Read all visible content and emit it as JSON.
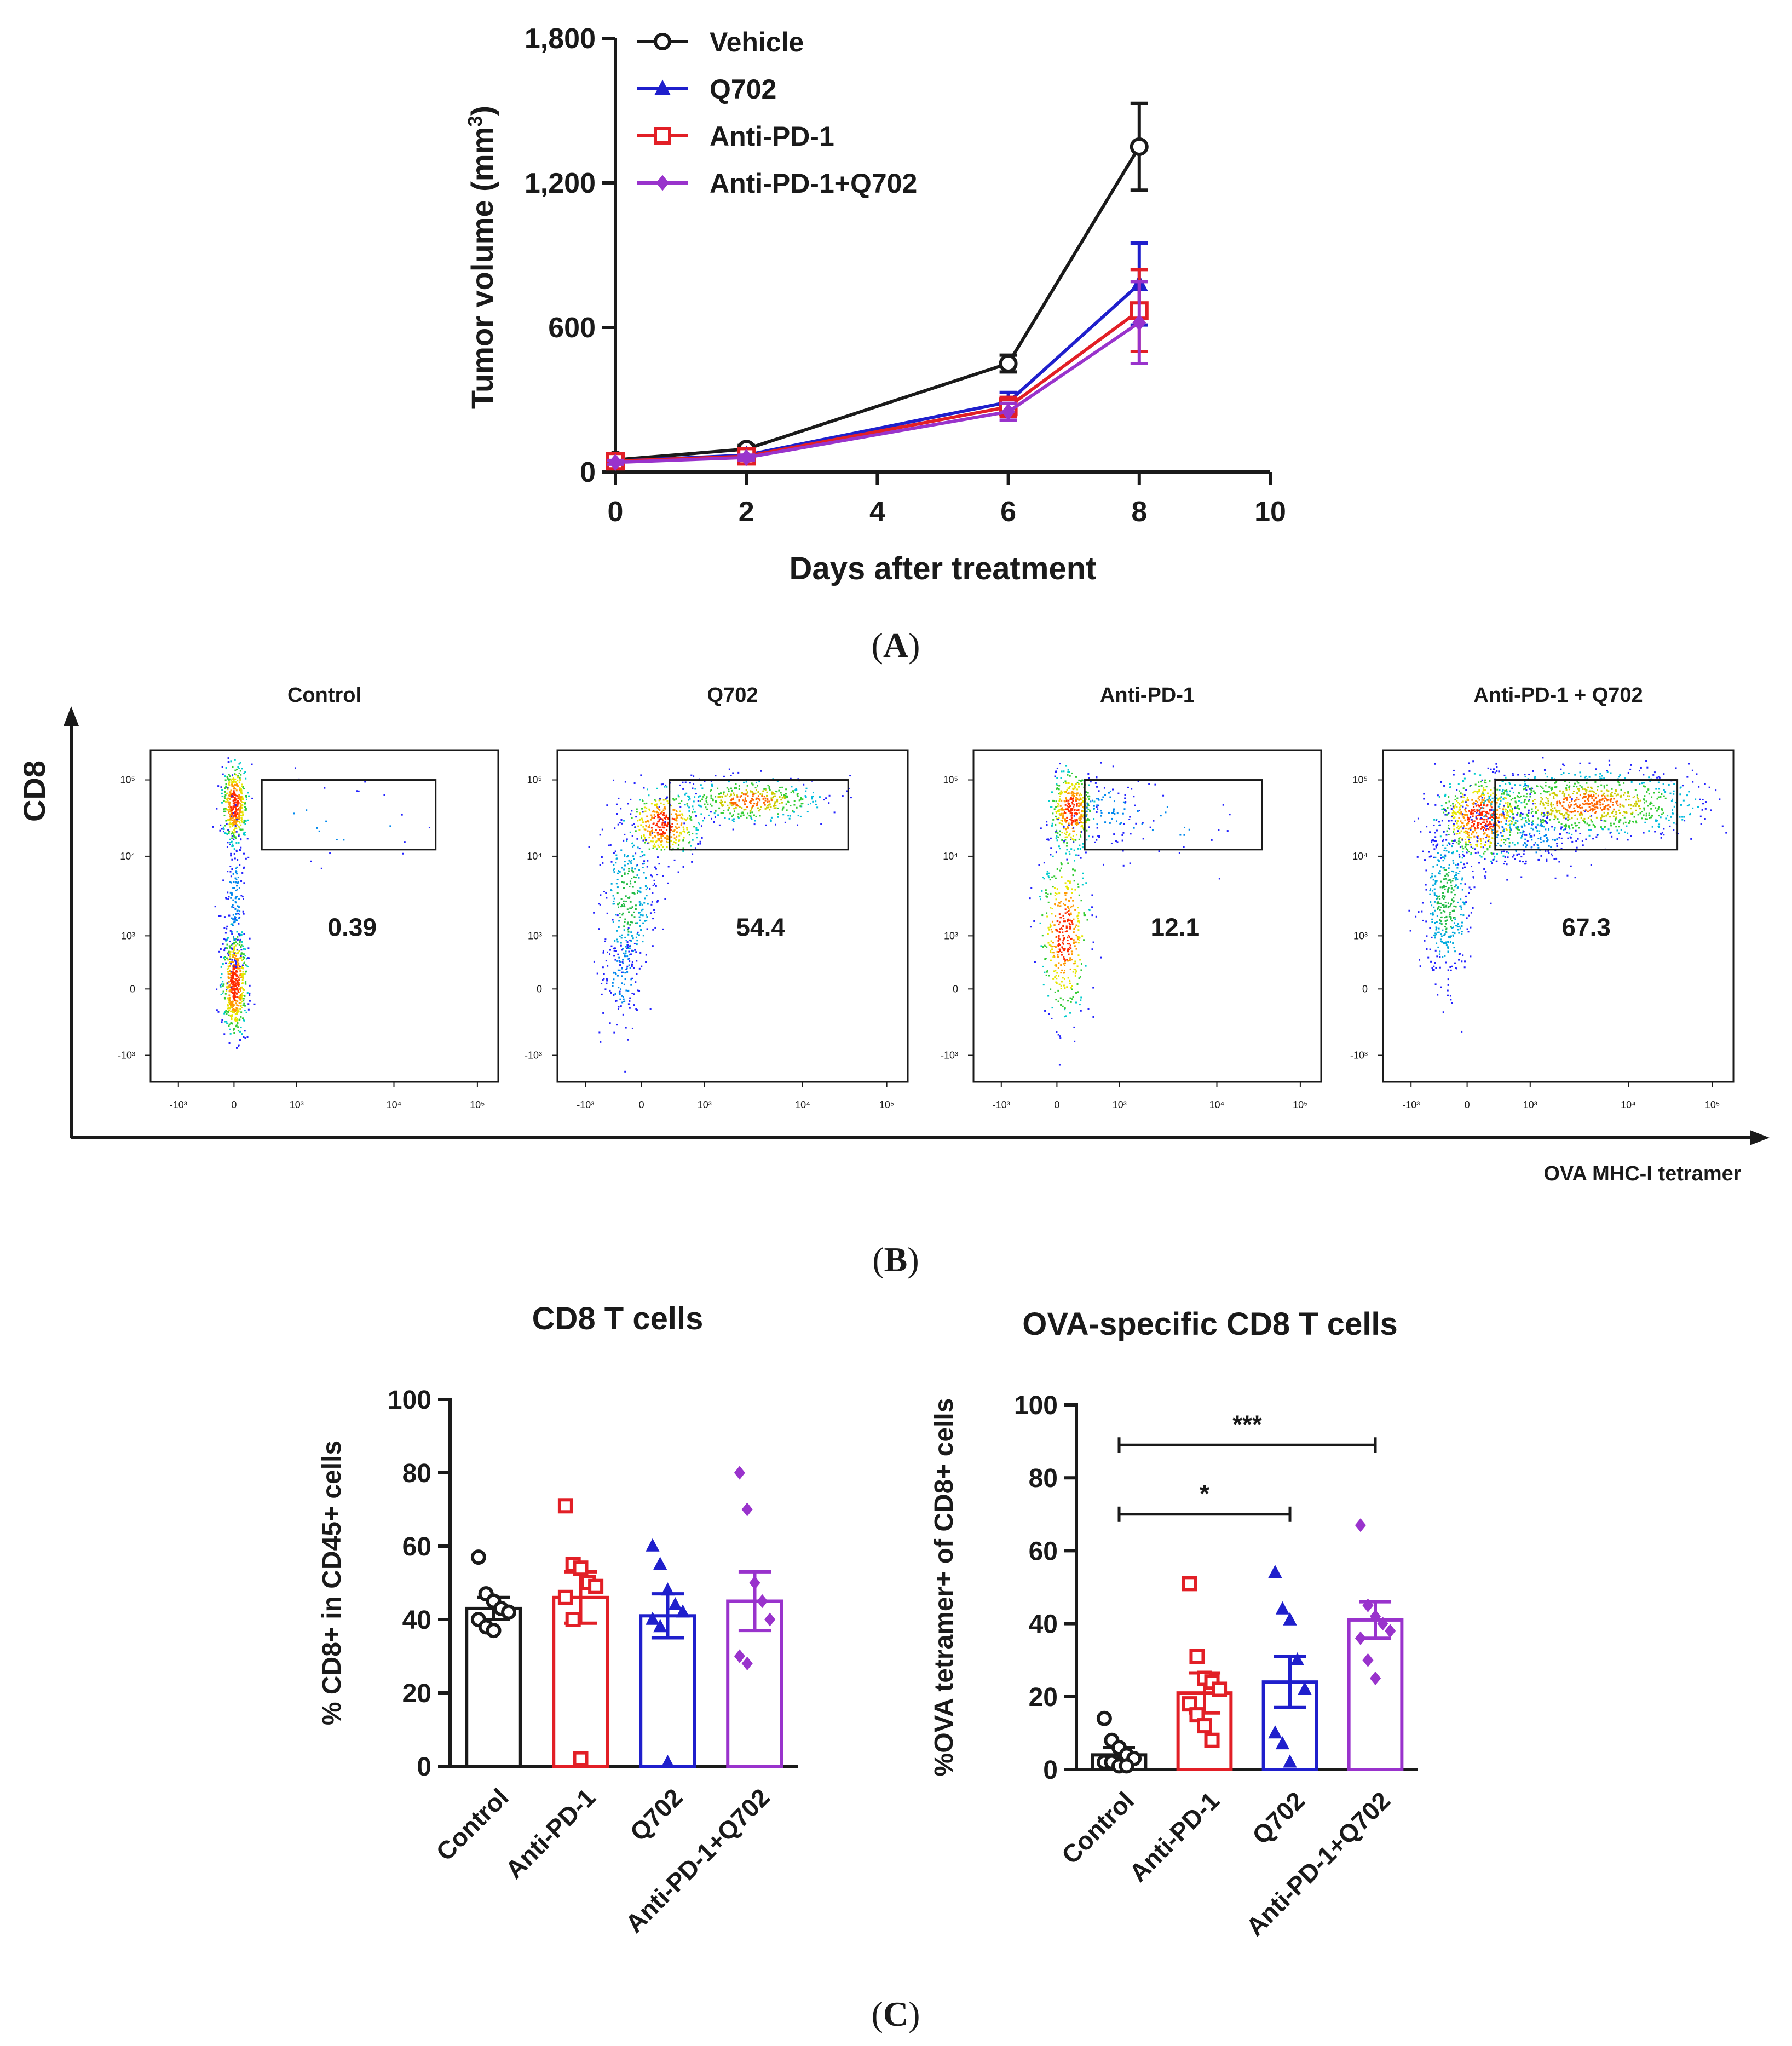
{
  "colors": {
    "black": "#1a1a1a",
    "blue": "#1f1fcc",
    "red": "#e21f26",
    "purple": "#9933cc"
  },
  "panel_labels": {
    "a": "A",
    "b": "B",
    "c": "C"
  },
  "chart_data": [
    {
      "id": "A",
      "type": "line",
      "xlabel": "Days after treatment",
      "ylabel_main": "Tumor volume (mm",
      "ylabel_sup": "3",
      "ylabel_close": ")",
      "xlim": [
        0,
        10
      ],
      "ylim": [
        0,
        1800
      ],
      "xticks": [
        "0",
        "2",
        "4",
        "6",
        "8",
        "10"
      ],
      "yticks": [
        "0",
        "600",
        "1,200",
        "1,800"
      ],
      "x": [
        0,
        2,
        6,
        8
      ],
      "series": [
        {
          "name": "Vehicle",
          "marker": "circle",
          "color": "#1a1a1a",
          "values": [
            50,
            95,
            450,
            1350
          ],
          "err": [
            10,
            15,
            35,
            180
          ]
        },
        {
          "name": "Q702",
          "marker": "triangle",
          "color": "#1f1fcc",
          "values": [
            45,
            70,
            290,
            780
          ],
          "err": [
            8,
            12,
            40,
            170
          ]
        },
        {
          "name": "Anti-PD-1",
          "marker": "square",
          "color": "#e21f26",
          "values": [
            45,
            65,
            270,
            670
          ],
          "err": [
            8,
            10,
            40,
            170
          ]
        },
        {
          "name": "Anti-PD-1+Q702",
          "marker": "diamond",
          "color": "#9933cc",
          "values": [
            40,
            60,
            250,
            620
          ],
          "err": [
            8,
            10,
            35,
            170
          ]
        }
      ]
    },
    {
      "id": "B",
      "type": "scatter",
      "ylabel": "CD8",
      "xlabel": "OVA MHC-I tetramer",
      "xticks": [
        "-10³",
        "0",
        "10³",
        "10⁴",
        "10⁵"
      ],
      "yticks": [
        "10⁵",
        "10⁴",
        "10³",
        "0",
        "-10³"
      ],
      "panels": [
        {
          "title": "Control",
          "percent": "0.39"
        },
        {
          "title": "Q702",
          "percent": "54.4"
        },
        {
          "title": "Anti-PD-1",
          "percent": "12.1"
        },
        {
          "title": "Anti-PD-1 + Q702",
          "percent": "67.3"
        }
      ]
    },
    {
      "id": "C1",
      "type": "bar",
      "title": "CD8 T cells",
      "ylabel": "% CD8+ in CD45+ cells",
      "ylim": [
        0,
        100
      ],
      "yticks": [
        "0",
        "20",
        "40",
        "60",
        "80",
        "100"
      ],
      "categories": [
        "Control",
        "Anti-PD-1",
        "Q702",
        "Anti-PD-1+Q702"
      ],
      "values": [
        43,
        46,
        41,
        45
      ],
      "sem": [
        3,
        7,
        6,
        8
      ],
      "points": [
        [
          57,
          47,
          45,
          43,
          42,
          40,
          38,
          37
        ],
        [
          71,
          55,
          54,
          50,
          49,
          46,
          40,
          2
        ],
        [
          60,
          55,
          48,
          44,
          42,
          40,
          38,
          1
        ],
        [
          80,
          70,
          50,
          45,
          40,
          30,
          28
        ]
      ]
    },
    {
      "id": "C2",
      "type": "bar",
      "title": "OVA-specific CD8 T cells",
      "ylabel": "%OVA tetramer+ of CD8+ cells",
      "ylim": [
        0,
        100
      ],
      "yticks": [
        "0",
        "20",
        "40",
        "60",
        "80",
        "100"
      ],
      "categories": [
        "Control",
        "Anti-PD-1",
        "Q702",
        "Anti-PD-1+Q702"
      ],
      "values": [
        4,
        21,
        24,
        41
      ],
      "sem": [
        2,
        5.5,
        7,
        5
      ],
      "points": [
        [
          14,
          8,
          6,
          4,
          3,
          2,
          2,
          1,
          1
        ],
        [
          51,
          31,
          25,
          24,
          22,
          18,
          15,
          12,
          8
        ],
        [
          54,
          44,
          41,
          30,
          22,
          10,
          7,
          2
        ],
        [
          67,
          45,
          42,
          40,
          38,
          36,
          30,
          25
        ]
      ],
      "significance": [
        {
          "label": "*",
          "from": "Control",
          "to": "Q702"
        },
        {
          "label": "***",
          "from": "Control",
          "to": "Anti-PD-1+Q702"
        }
      ]
    }
  ]
}
